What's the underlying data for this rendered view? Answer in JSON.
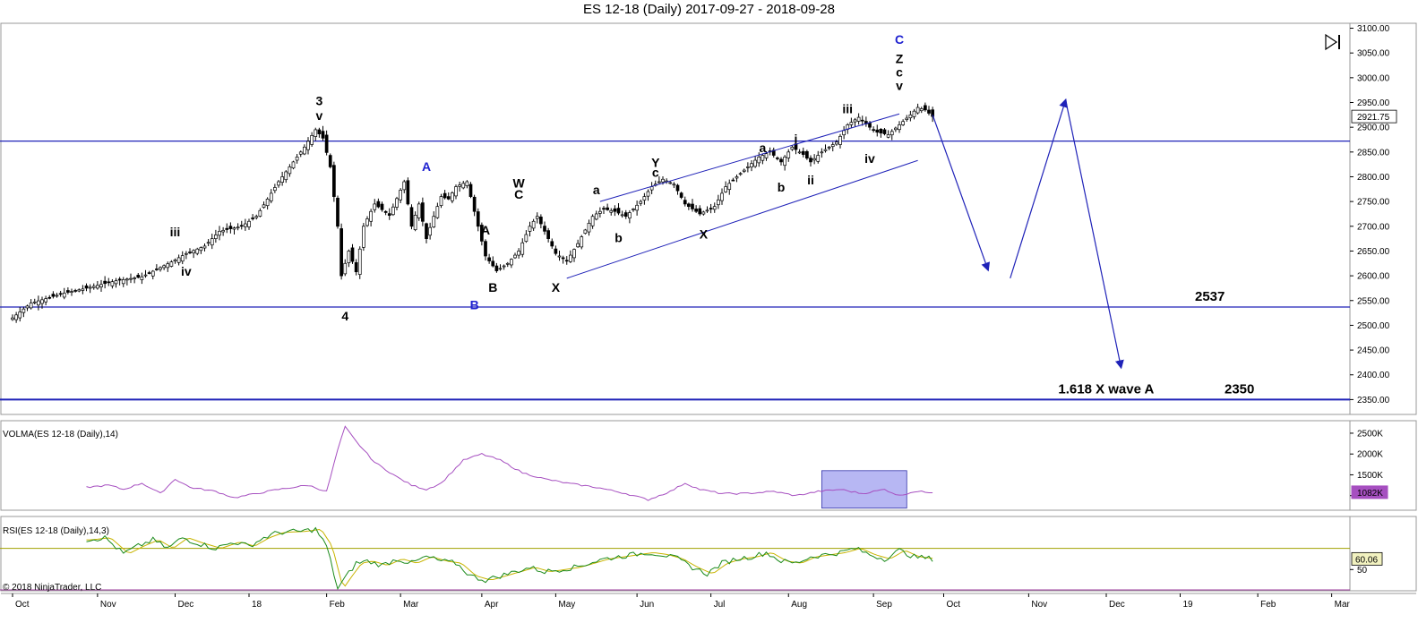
{
  "title": "ES 12-18 (Daily)  2017-09-27 - 2018-09-28",
  "copyright": "© 2018 NinjaTrader, LLC",
  "colors": {
    "blue": "#1f22b8",
    "label_blue": "#1f22d0",
    "candle_up": "#ffffff",
    "candle_down": "#000000",
    "volma": "#a64fc0",
    "rsi_green": "#1a8a1a",
    "rsi_yellow": "#c8b400",
    "rsi_band": "#a0a000",
    "rsi_low": "#a040a0",
    "highlight": "#9999ee"
  },
  "chart_data": [
    {
      "type": "line",
      "name": "price",
      "ylim": [
        2320,
        3110
      ],
      "yticks": [
        "3100.00",
        "3050.00",
        "3000.00",
        "2950.00",
        "2900.00",
        "2850.00",
        "2800.00",
        "2750.00",
        "2700.00",
        "2650.00",
        "2600.00",
        "2550.00",
        "2500.00",
        "2450.00",
        "2400.00",
        "2350.00"
      ],
      "ytick_values": [
        3100,
        3050,
        3000,
        2950,
        2900,
        2850,
        2800,
        2750,
        2700,
        2650,
        2600,
        2550,
        2500,
        2450,
        2400,
        2350
      ],
      "last_price": "2921.75",
      "x_months": [
        {
          "label": "Oct",
          "bar": 0
        },
        {
          "label": "Nov",
          "bar": 23
        },
        {
          "label": "Dec",
          "bar": 44
        },
        {
          "label": "18",
          "bar": 64
        },
        {
          "label": "Feb",
          "bar": 85
        },
        {
          "label": "Mar",
          "bar": 105
        },
        {
          "label": "Apr",
          "bar": 127
        },
        {
          "label": "May",
          "bar": 147
        },
        {
          "label": "Jun",
          "bar": 169
        },
        {
          "label": "Jul",
          "bar": 189
        },
        {
          "label": "Aug",
          "bar": 210
        },
        {
          "label": "Sep",
          "bar": 233
        },
        {
          "label": "Oct",
          "bar": 252
        },
        {
          "label": "Nov",
          "bar": 275
        },
        {
          "label": "Dec",
          "bar": 296
        },
        {
          "label": "19",
          "bar": 316
        },
        {
          "label": "Feb",
          "bar": 337
        },
        {
          "label": "Mar",
          "bar": 357
        }
      ],
      "anchors": [
        [
          0,
          2515
        ],
        [
          5,
          2545
        ],
        [
          14,
          2565
        ],
        [
          20,
          2575
        ],
        [
          28,
          2590
        ],
        [
          35,
          2598
        ],
        [
          43,
          2628
        ],
        [
          47,
          2645
        ],
        [
          52,
          2660
        ],
        [
          56,
          2690
        ],
        [
          62,
          2700
        ],
        [
          66,
          2720
        ],
        [
          72,
          2790
        ],
        [
          79,
          2860
        ],
        [
          82,
          2895
        ],
        [
          84,
          2878
        ],
        [
          86,
          2820
        ],
        [
          88,
          2700
        ],
        [
          89,
          2600
        ],
        [
          91,
          2650
        ],
        [
          93,
          2608
        ],
        [
          95,
          2700
        ],
        [
          98,
          2745
        ],
        [
          102,
          2722
        ],
        [
          106,
          2790
        ],
        [
          108,
          2700
        ],
        [
          110,
          2745
        ],
        [
          112,
          2675
        ],
        [
          114,
          2720
        ],
        [
          116,
          2760
        ],
        [
          118,
          2755
        ],
        [
          120,
          2780
        ],
        [
          123,
          2790
        ],
        [
          126,
          2700
        ],
        [
          128,
          2640
        ],
        [
          131,
          2610
        ],
        [
          134,
          2625
        ],
        [
          137,
          2650
        ],
        [
          140,
          2700
        ],
        [
          142,
          2720
        ],
        [
          144,
          2690
        ],
        [
          147,
          2645
        ],
        [
          150,
          2630
        ],
        [
          153,
          2665
        ],
        [
          157,
          2720
        ],
        [
          160,
          2735
        ],
        [
          163,
          2730
        ],
        [
          166,
          2720
        ],
        [
          170,
          2750
        ],
        [
          173,
          2780
        ],
        [
          176,
          2795
        ],
        [
          179,
          2785
        ],
        [
          182,
          2745
        ],
        [
          186,
          2725
        ],
        [
          190,
          2740
        ],
        [
          193,
          2780
        ],
        [
          196,
          2800
        ],
        [
          199,
          2820
        ],
        [
          202,
          2840
        ],
        [
          205,
          2850
        ],
        [
          208,
          2830
        ],
        [
          211,
          2860
        ],
        [
          214,
          2845
        ],
        [
          216,
          2830
        ],
        [
          219,
          2850
        ],
        [
          223,
          2870
        ],
        [
          226,
          2905
        ],
        [
          229,
          2920
        ],
        [
          232,
          2900
        ],
        [
          234,
          2890
        ],
        [
          237,
          2885
        ],
        [
          240,
          2905
        ],
        [
          243,
          2925
        ],
        [
          245,
          2940
        ],
        [
          247,
          2935
        ],
        [
          249,
          2921.75
        ]
      ],
      "horizontal_levels": [
        2872,
        2537,
        2350
      ],
      "level_labels": [
        {
          "text": "2537",
          "bar": 320,
          "y": 2537
        },
        {
          "text": "2350",
          "bar": 328,
          "y": 2350
        },
        {
          "text": "1.618 X wave A",
          "bar": 283,
          "y": 2350
        }
      ],
      "channel": {
        "upper": [
          [
            159,
            2750
          ],
          [
            240,
            2927
          ]
        ],
        "lower": [
          [
            150,
            2595
          ],
          [
            245,
            2833
          ]
        ]
      },
      "projection": [
        [
          249,
          2925
        ],
        [
          264,
          2612
        ],
        [
          270,
          2595
        ],
        [
          285,
          2955
        ],
        [
          300,
          2415
        ]
      ],
      "wave_labels": [
        {
          "text": "3",
          "bar": 83,
          "y": 2945,
          "color": "black"
        },
        {
          "text": "v",
          "bar": 83,
          "y": 2915,
          "color": "black"
        },
        {
          "text": "4",
          "bar": 90,
          "y": 2510,
          "color": "black"
        },
        {
          "text": "iii",
          "bar": 44,
          "y": 2680,
          "color": "black"
        },
        {
          "text": "iv",
          "bar": 47,
          "y": 2600,
          "color": "black"
        },
        {
          "text": "A",
          "bar": 112,
          "y": 2812,
          "color": "blue"
        },
        {
          "text": "B",
          "bar": 125,
          "y": 2532,
          "color": "blue"
        },
        {
          "text": "A",
          "bar": 128,
          "y": 2683,
          "color": "black"
        },
        {
          "text": "B",
          "bar": 130,
          "y": 2568,
          "color": "black"
        },
        {
          "text": "W",
          "bar": 137,
          "y": 2778,
          "color": "black"
        },
        {
          "text": "C",
          "bar": 137,
          "y": 2756,
          "color": "black"
        },
        {
          "text": "X",
          "bar": 147,
          "y": 2568,
          "color": "black"
        },
        {
          "text": "a",
          "bar": 158,
          "y": 2765,
          "color": "black"
        },
        {
          "text": "b",
          "bar": 164,
          "y": 2668,
          "color": "black"
        },
        {
          "text": "Y",
          "bar": 174,
          "y": 2820,
          "color": "black"
        },
        {
          "text": "c",
          "bar": 174,
          "y": 2800,
          "color": "black"
        },
        {
          "text": "X",
          "bar": 187,
          "y": 2675,
          "color": "black"
        },
        {
          "text": "a",
          "bar": 203,
          "y": 2850,
          "color": "black"
        },
        {
          "text": "b",
          "bar": 208,
          "y": 2770,
          "color": "black"
        },
        {
          "text": "i",
          "bar": 212,
          "y": 2868,
          "color": "black"
        },
        {
          "text": "ii",
          "bar": 216,
          "y": 2785,
          "color": "black"
        },
        {
          "text": "iii",
          "bar": 226,
          "y": 2928,
          "color": "black"
        },
        {
          "text": "iv",
          "bar": 232,
          "y": 2828,
          "color": "black"
        },
        {
          "text": "C",
          "bar": 240,
          "y": 3068,
          "color": "blue"
        },
        {
          "text": "Z",
          "bar": 240,
          "y": 3030,
          "color": "black"
        },
        {
          "text": "c",
          "bar": 240,
          "y": 3002,
          "color": "black"
        },
        {
          "text": "v",
          "bar": 240,
          "y": 2975,
          "color": "black"
        }
      ]
    },
    {
      "type": "line",
      "name": "VOLMA",
      "label": "VOLMA(ES 12-18 (Daily),14)",
      "ylim": [
        650000,
        2800000
      ],
      "yticks": [
        "2500K",
        "2000K",
        "1500K",
        "1000K"
      ],
      "ytick_values": [
        2500000,
        2000000,
        1500000,
        1000000
      ],
      "last_value": "1082K",
      "anchors": [
        [
          20,
          1200000
        ],
        [
          26,
          1250000
        ],
        [
          30,
          1150000
        ],
        [
          35,
          1300000
        ],
        [
          40,
          1050000
        ],
        [
          44,
          1400000
        ],
        [
          48,
          1200000
        ],
        [
          55,
          1100000
        ],
        [
          60,
          950000
        ],
        [
          66,
          1050000
        ],
        [
          72,
          1150000
        ],
        [
          80,
          1250000
        ],
        [
          85,
          1100000
        ],
        [
          88,
          2100000
        ],
        [
          90,
          2650000
        ],
        [
          93,
          2300000
        ],
        [
          98,
          1800000
        ],
        [
          104,
          1450000
        ],
        [
          108,
          1250000
        ],
        [
          112,
          1150000
        ],
        [
          116,
          1300000
        ],
        [
          122,
          1850000
        ],
        [
          127,
          2000000
        ],
        [
          132,
          1850000
        ],
        [
          138,
          1550000
        ],
        [
          144,
          1400000
        ],
        [
          150,
          1300000
        ],
        [
          158,
          1200000
        ],
        [
          166,
          1050000
        ],
        [
          172,
          900000
        ],
        [
          178,
          1100000
        ],
        [
          182,
          1300000
        ],
        [
          186,
          1150000
        ],
        [
          192,
          1050000
        ],
        [
          198,
          1050000
        ],
        [
          206,
          1100000
        ],
        [
          212,
          1000000
        ],
        [
          218,
          1100000
        ],
        [
          224,
          1150000
        ],
        [
          230,
          1050000
        ],
        [
          236,
          1150000
        ],
        [
          240,
          1000000
        ],
        [
          244,
          1100000
        ],
        [
          249,
          1082000
        ]
      ],
      "highlight_box": {
        "bar_start": 219,
        "bar_end": 242,
        "y_top": 1600000,
        "y_bottom": 700000
      }
    },
    {
      "type": "line",
      "name": "RSI",
      "label": "RSI(ES 12-18 (Daily),14,3)",
      "ylim": [
        30,
        100
      ],
      "yticks": [
        "50"
      ],
      "ytick_values": [
        50
      ],
      "upper_band": 70,
      "lower_band": 30,
      "last_value": "60.06",
      "anchors": [
        [
          20,
          78
        ],
        [
          25,
          80
        ],
        [
          30,
          65
        ],
        [
          34,
          72
        ],
        [
          38,
          78
        ],
        [
          42,
          70
        ],
        [
          46,
          80
        ],
        [
          50,
          75
        ],
        [
          55,
          70
        ],
        [
          60,
          76
        ],
        [
          64,
          72
        ],
        [
          68,
          80
        ],
        [
          72,
          85
        ],
        [
          78,
          86
        ],
        [
          82,
          88
        ],
        [
          85,
          72
        ],
        [
          88,
          32
        ],
        [
          90,
          42
        ],
        [
          93,
          56
        ],
        [
          96,
          58
        ],
        [
          100,
          54
        ],
        [
          104,
          60
        ],
        [
          108,
          56
        ],
        [
          112,
          62
        ],
        [
          116,
          58
        ],
        [
          120,
          56
        ],
        [
          124,
          44
        ],
        [
          128,
          40
        ],
        [
          132,
          44
        ],
        [
          136,
          48
        ],
        [
          140,
          52
        ],
        [
          144,
          48
        ],
        [
          148,
          50
        ],
        [
          152,
          52
        ],
        [
          156,
          56
        ],
        [
          160,
          60
        ],
        [
          164,
          62
        ],
        [
          168,
          64
        ],
        [
          172,
          66
        ],
        [
          176,
          64
        ],
        [
          180,
          60
        ],
        [
          184,
          52
        ],
        [
          188,
          46
        ],
        [
          192,
          56
        ],
        [
          196,
          60
        ],
        [
          200,
          62
        ],
        [
          204,
          66
        ],
        [
          208,
          58
        ],
        [
          212,
          56
        ],
        [
          216,
          62
        ],
        [
          220,
          64
        ],
        [
          224,
          66
        ],
        [
          228,
          70
        ],
        [
          232,
          64
        ],
        [
          236,
          60
        ],
        [
          240,
          68
        ],
        [
          244,
          62
        ],
        [
          249,
          60.06
        ]
      ]
    }
  ]
}
